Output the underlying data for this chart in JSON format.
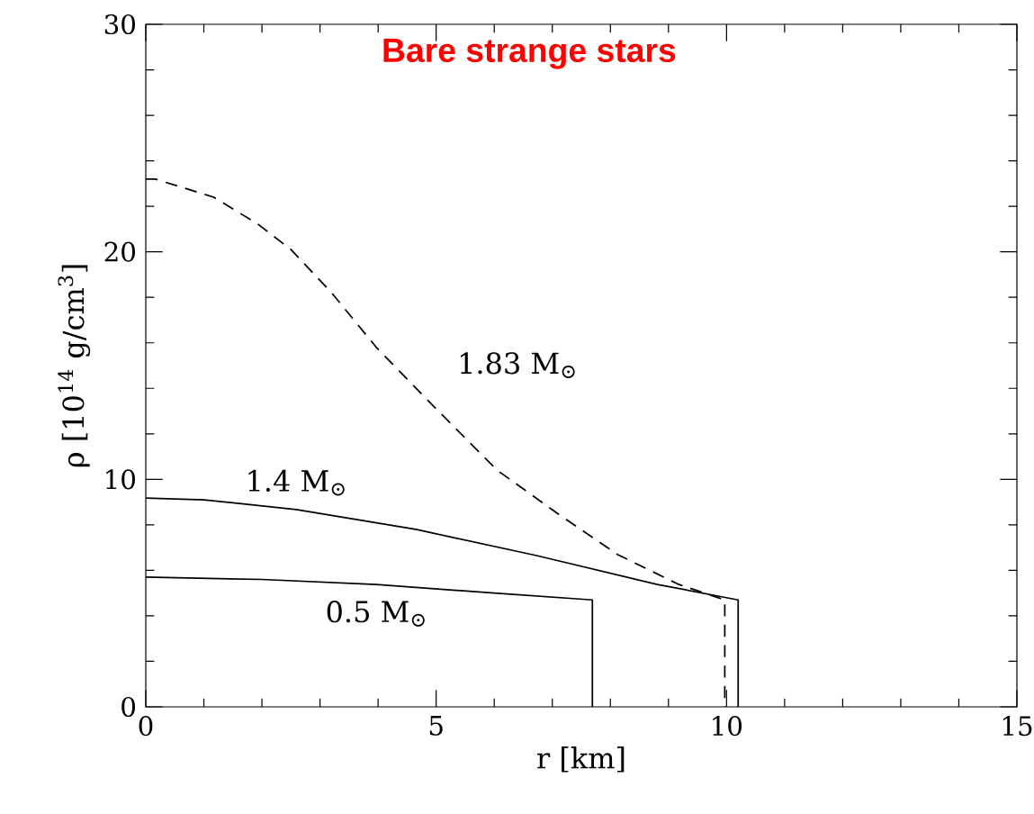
{
  "chart_data": {
    "type": "line",
    "title": "Bare strange stars",
    "xlabel": "r   [km]",
    "ylabel": "ρ  [10$^{14}$ g/cm$^{3}$]",
    "xlim": [
      0,
      15
    ],
    "ylim": [
      0,
      30
    ],
    "xticks": [
      0,
      5,
      10,
      15
    ],
    "yticks": [
      0,
      10,
      20,
      30
    ],
    "grid": false,
    "legend": false,
    "marker": "none",
    "series": [
      {
        "name": "1.83 M$_{⊙}$",
        "color": "#000000",
        "line_style": "dashed",
        "x": [
          0,
          0.16,
          1.17,
          1.94,
          2.5,
          3.2,
          3.97,
          5.0,
          6.05,
          7.09,
          8.12,
          9.16,
          9.97,
          9.97
        ],
        "values": [
          23.2,
          23.2,
          22.4,
          21.2,
          20.1,
          18.2,
          15.8,
          13.1,
          10.4,
          8.5,
          6.7,
          5.4,
          4.7,
          0
        ]
      },
      {
        "name": "1.4 M$_{⊙}$",
        "color": "#000000",
        "line_style": "solid",
        "x": [
          0,
          1.0,
          2.59,
          4.65,
          6.73,
          8.81,
          10.2,
          10.2
        ],
        "values": [
          9.18,
          9.1,
          8.67,
          7.8,
          6.65,
          5.38,
          4.7,
          0
        ]
      },
      {
        "name": "0.5 M$_{⊙}$",
        "color": "#000000",
        "line_style": "solid",
        "x": [
          0,
          2.0,
          3.97,
          6.0,
          7.69,
          7.69
        ],
        "values": [
          5.7,
          5.6,
          5.38,
          5.0,
          4.7,
          0
        ]
      }
    ]
  }
}
